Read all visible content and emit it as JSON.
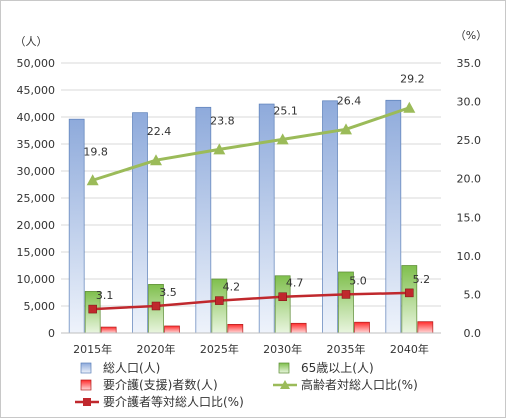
{
  "chart_data": {
    "type": "bar",
    "categories": [
      "2015年",
      "2020年",
      "2025年",
      "2030年",
      "2035年",
      "2040年"
    ],
    "series": [
      {
        "name": "総人口(人)",
        "type": "bar",
        "axis": "left",
        "values": [
          39600,
          40800,
          41800,
          42400,
          43000,
          43100
        ],
        "color": "#8ea9db"
      },
      {
        "name": "65歳以上(人)",
        "type": "bar",
        "axis": "left",
        "values": [
          7700,
          9000,
          10000,
          10600,
          11300,
          12500
        ],
        "color": "#92d050"
      },
      {
        "name": "要介護(支援)者数(人)",
        "type": "bar",
        "axis": "left",
        "values": [
          1100,
          1300,
          1600,
          1800,
          2000,
          2100
        ],
        "color": "#ff3333"
      },
      {
        "name": "高齢者対総人口比(%)",
        "type": "line",
        "axis": "right",
        "values": [
          19.8,
          22.4,
          23.8,
          25.1,
          26.4,
          29.2
        ],
        "labels": [
          "19.8",
          "22.4",
          "23.8",
          "25.1",
          "26.4",
          "29.2"
        ],
        "color": "#9bbb59"
      },
      {
        "name": "要介護者等対総人口比(%)",
        "type": "line",
        "axis": "right",
        "values": [
          3.1,
          3.5,
          4.2,
          4.7,
          5.0,
          5.2
        ],
        "labels": [
          "3.1",
          "3.5",
          "4.2",
          "4.7",
          "5.0",
          "5.2"
        ],
        "color": "#c0282d"
      }
    ],
    "y_left": {
      "unit_label": "（人）",
      "min": 0,
      "max": 50000,
      "step": 5000,
      "ticks": [
        "0",
        "5,000",
        "10,000",
        "15,000",
        "20,000",
        "25,000",
        "30,000",
        "35,000",
        "40,000",
        "45,000",
        "50,000"
      ]
    },
    "y_right": {
      "unit_label": "（%）",
      "min": 0,
      "max": 35,
      "step": 5,
      "ticks": [
        "0.0",
        "5.0",
        "10.0",
        "15.0",
        "20.0",
        "25.0",
        "30.0",
        "35.0"
      ]
    },
    "grid": true,
    "legend_position": "bottom"
  }
}
